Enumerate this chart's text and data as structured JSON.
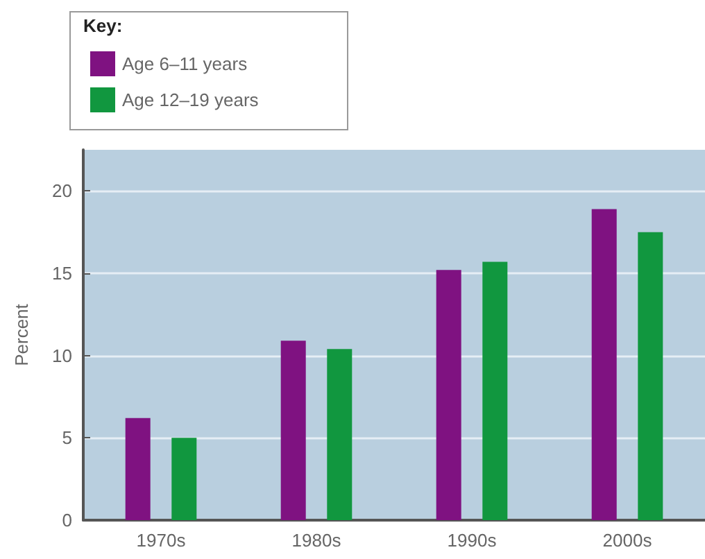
{
  "chart_data": {
    "type": "bar",
    "legend_title": "Key:",
    "ylabel": "Percent",
    "categories": [
      "1970s",
      "1980s",
      "1990s",
      "2000s"
    ],
    "series": [
      {
        "name": "Age 6–11 years",
        "color": "#7f1281",
        "values": [
          6.2,
          10.9,
          15.2,
          18.9
        ]
      },
      {
        "name": "Age 12–19 years",
        "color": "#11973f",
        "values": [
          5.0,
          10.4,
          15.7,
          17.5
        ]
      }
    ],
    "ylim": [
      0,
      22.5
    ],
    "yticks": [
      0,
      5,
      10,
      15,
      20
    ],
    "grid": "y",
    "legend": "top left"
  }
}
